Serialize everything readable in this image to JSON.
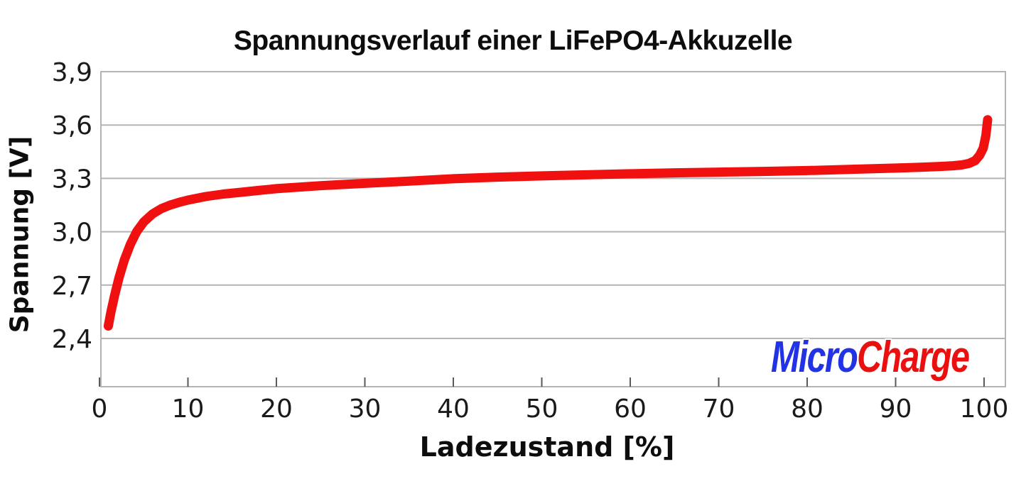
{
  "chart_data": {
    "type": "line",
    "title": "Spannungsverlauf einer LiFePO4-Akkuzelle",
    "xlabel": "Ladezustand [%]",
    "ylabel": "Spannung [V]",
    "x_range": [
      0,
      102
    ],
    "y_range": [
      2.13,
      3.9
    ],
    "grid": "horizontal",
    "legend": "none",
    "x_ticks": [
      {
        "value": 0,
        "label": "0"
      },
      {
        "value": 10,
        "label": "10"
      },
      {
        "value": 20,
        "label": "20"
      },
      {
        "value": 30,
        "label": "30"
      },
      {
        "value": 40,
        "label": "40"
      },
      {
        "value": 50,
        "label": "50"
      },
      {
        "value": 60,
        "label": "60"
      },
      {
        "value": 70,
        "label": "70"
      },
      {
        "value": 80,
        "label": "80"
      },
      {
        "value": 90,
        "label": "90"
      },
      {
        "value": 100,
        "label": "100"
      }
    ],
    "y_ticks": [
      {
        "value": 3.9,
        "label": "3,9"
      },
      {
        "value": 3.6,
        "label": "3,6"
      },
      {
        "value": 3.3,
        "label": "3,3"
      },
      {
        "value": 3.0,
        "label": "3,0"
      },
      {
        "value": 2.7,
        "label": "2,7"
      },
      {
        "value": 2.4,
        "label": "2,4"
      }
    ],
    "series": [
      {
        "color": "#f01010",
        "points": [
          [
            1.0,
            2.47
          ],
          [
            1.3,
            2.55
          ],
          [
            1.7,
            2.64
          ],
          [
            2.2,
            2.74
          ],
          [
            2.8,
            2.84
          ],
          [
            3.5,
            2.93
          ],
          [
            4.2,
            3.0
          ],
          [
            5.0,
            3.055
          ],
          [
            6.0,
            3.1
          ],
          [
            7.0,
            3.13
          ],
          [
            8.0,
            3.15
          ],
          [
            9.0,
            3.165
          ],
          [
            10,
            3.178
          ],
          [
            12,
            3.198
          ],
          [
            14,
            3.212
          ],
          [
            16,
            3.222
          ],
          [
            18,
            3.232
          ],
          [
            20,
            3.242
          ],
          [
            25,
            3.259
          ],
          [
            30,
            3.272
          ],
          [
            35,
            3.285
          ],
          [
            40,
            3.298
          ],
          [
            45,
            3.307
          ],
          [
            50,
            3.314
          ],
          [
            55,
            3.32
          ],
          [
            60,
            3.326
          ],
          [
            65,
            3.331
          ],
          [
            70,
            3.335
          ],
          [
            75,
            3.339
          ],
          [
            80,
            3.344
          ],
          [
            85,
            3.351
          ],
          [
            90,
            3.358
          ],
          [
            93,
            3.363
          ],
          [
            95,
            3.367
          ],
          [
            96.5,
            3.371
          ],
          [
            97.5,
            3.376
          ],
          [
            98.3,
            3.384
          ],
          [
            99.0,
            3.4
          ],
          [
            99.5,
            3.43
          ],
          [
            99.9,
            3.47
          ],
          [
            100.2,
            3.54
          ],
          [
            100.4,
            3.63
          ]
        ]
      }
    ]
  },
  "logo": {
    "part1": "Micro",
    "part2": "Charge",
    "color1": "#2233e6",
    "color2": "#ea1010"
  },
  "colors": {
    "grid": "#b4b4b4",
    "frame": "#b4b4b4",
    "tick_mark": "#595959",
    "tick_text": "#1a1a1a"
  }
}
